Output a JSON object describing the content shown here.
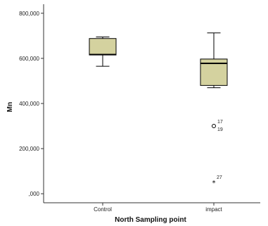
{
  "chart_data": {
    "type": "box",
    "xlabel": "North Sampling point",
    "ylabel": "Mn",
    "categories": [
      "Control",
      "impact"
    ],
    "y_ticks": [
      0,
      200000,
      400000,
      600000,
      800000
    ],
    "y_tick_labels": [
      ",000",
      "200,000",
      "400,000",
      "600,000",
      "800,000"
    ],
    "ylim": [
      -40000,
      840000
    ],
    "box_color": "#d4d29f",
    "grid": false,
    "boxes": [
      {
        "category": "Control",
        "min": 565000,
        "q1": 615000,
        "median": 617000,
        "q3": 688000,
        "max": 695000,
        "outliers": []
      },
      {
        "category": "impact",
        "min": 470000,
        "q1": 480000,
        "median": 578000,
        "q3": 597000,
        "max": 713000,
        "outliers": [
          {
            "value": 300000,
            "marker": "circle",
            "labels": [
              "17",
              "19"
            ]
          },
          {
            "value": 50000,
            "marker": "star",
            "labels": [
              "27"
            ]
          }
        ]
      }
    ]
  }
}
